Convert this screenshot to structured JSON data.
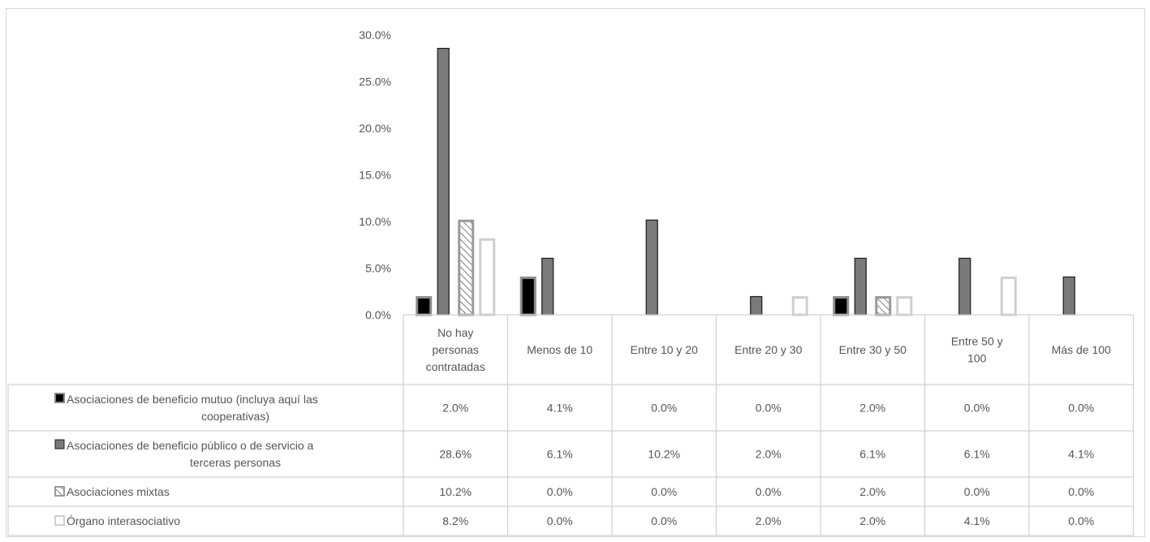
{
  "chart_data": {
    "type": "bar",
    "ylim": [
      0,
      30
    ],
    "y_ticks": [
      "0.0%",
      "5.0%",
      "10.0%",
      "15.0%",
      "20.0%",
      "25.0%",
      "30.0%"
    ],
    "grid": false,
    "legend": "data-table",
    "categories": [
      [
        "No hay",
        "personas",
        "contratadas"
      ],
      [
        "Menos de 10"
      ],
      [
        "Entre 10 y 20"
      ],
      [
        "Entre 20 y 30"
      ],
      [
        "Entre 30 y 50"
      ],
      [
        "Entre 50 y",
        "100"
      ],
      [
        "Más de 100"
      ]
    ],
    "series": [
      {
        "name": [
          "Asociaciones de beneficio mutuo (incluya aquí las",
          "cooperativas)"
        ],
        "values": [
          2.0,
          4.1,
          0.0,
          0.0,
          2.0,
          0.0,
          0.0
        ],
        "labels": [
          "2.0%",
          "4.1%",
          "0.0%",
          "0.0%",
          "2.0%",
          "0.0%",
          "0.0%"
        ],
        "style": "black"
      },
      {
        "name": [
          "Asociaciones de beneficio público o de servicio a",
          "terceras personas"
        ],
        "values": [
          28.6,
          6.1,
          10.2,
          2.0,
          6.1,
          6.1,
          4.1
        ],
        "labels": [
          "28.6%",
          "6.1%",
          "10.2%",
          "2.0%",
          "6.1%",
          "6.1%",
          "4.1%"
        ],
        "style": "darkgray"
      },
      {
        "name": [
          "Asociaciones mixtas"
        ],
        "values": [
          10.2,
          0.0,
          0.0,
          0.0,
          2.0,
          0.0,
          0.0
        ],
        "labels": [
          "10.2%",
          "0.0%",
          "0.0%",
          "0.0%",
          "2.0%",
          "0.0%",
          "0.0%"
        ],
        "style": "hatched"
      },
      {
        "name": [
          "Órgano interasociativo"
        ],
        "values": [
          8.2,
          0.0,
          0.0,
          2.0,
          2.0,
          4.1,
          0.0
        ],
        "labels": [
          "8.2%",
          "0.0%",
          "0.0%",
          "2.0%",
          "2.0%",
          "4.1%",
          "0.0%"
        ],
        "style": "hollow"
      }
    ],
    "colors": {
      "black_fill": "#000000",
      "black_outline": "#8c8c8c",
      "darkgray_fill": "#7a7a7a",
      "darkgray_outline": "#1a1a1a",
      "hatch_bg": "#ffffff",
      "hatch_outline": "#9a9a9a",
      "hollow_outline": "#cfcfcf",
      "table_lines": "#d0d0d0",
      "text": "#555555"
    }
  }
}
